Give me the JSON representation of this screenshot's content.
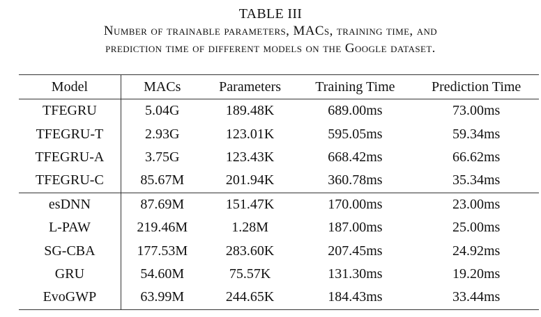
{
  "caption": {
    "label": "TABLE III",
    "line1": "Number of trainable parameters, MACs, training time, and",
    "line2": "prediction time of different models on the Google dataset."
  },
  "table": {
    "columns": [
      "Model",
      "MACs",
      "Parameters",
      "Training Time",
      "Prediction Time"
    ],
    "rows": [
      [
        "TFEGRU",
        "5.04G",
        "189.48K",
        "689.00ms",
        "73.00ms"
      ],
      [
        "TFEGRU-T",
        "2.93G",
        "123.01K",
        "595.05ms",
        "59.34ms"
      ],
      [
        "TFEGRU-A",
        "3.75G",
        "123.43K",
        "668.42ms",
        "66.62ms"
      ],
      [
        "TFEGRU-C",
        "85.67M",
        "201.94K",
        "360.78ms",
        "35.34ms"
      ],
      [
        "esDNN",
        "87.69M",
        "151.47K",
        "170.00ms",
        "23.00ms"
      ],
      [
        "L-PAW",
        "219.46M",
        "1.28M",
        "187.00ms",
        "25.00ms"
      ],
      [
        "SG-CBA",
        "177.53M",
        "283.60K",
        "207.45ms",
        "24.92ms"
      ],
      [
        "GRU",
        "54.60M",
        "75.57K",
        "131.30ms",
        "19.20ms"
      ],
      [
        "EvoGWP",
        "63.99M",
        "244.65K",
        "184.43ms",
        "33.44ms"
      ]
    ]
  }
}
